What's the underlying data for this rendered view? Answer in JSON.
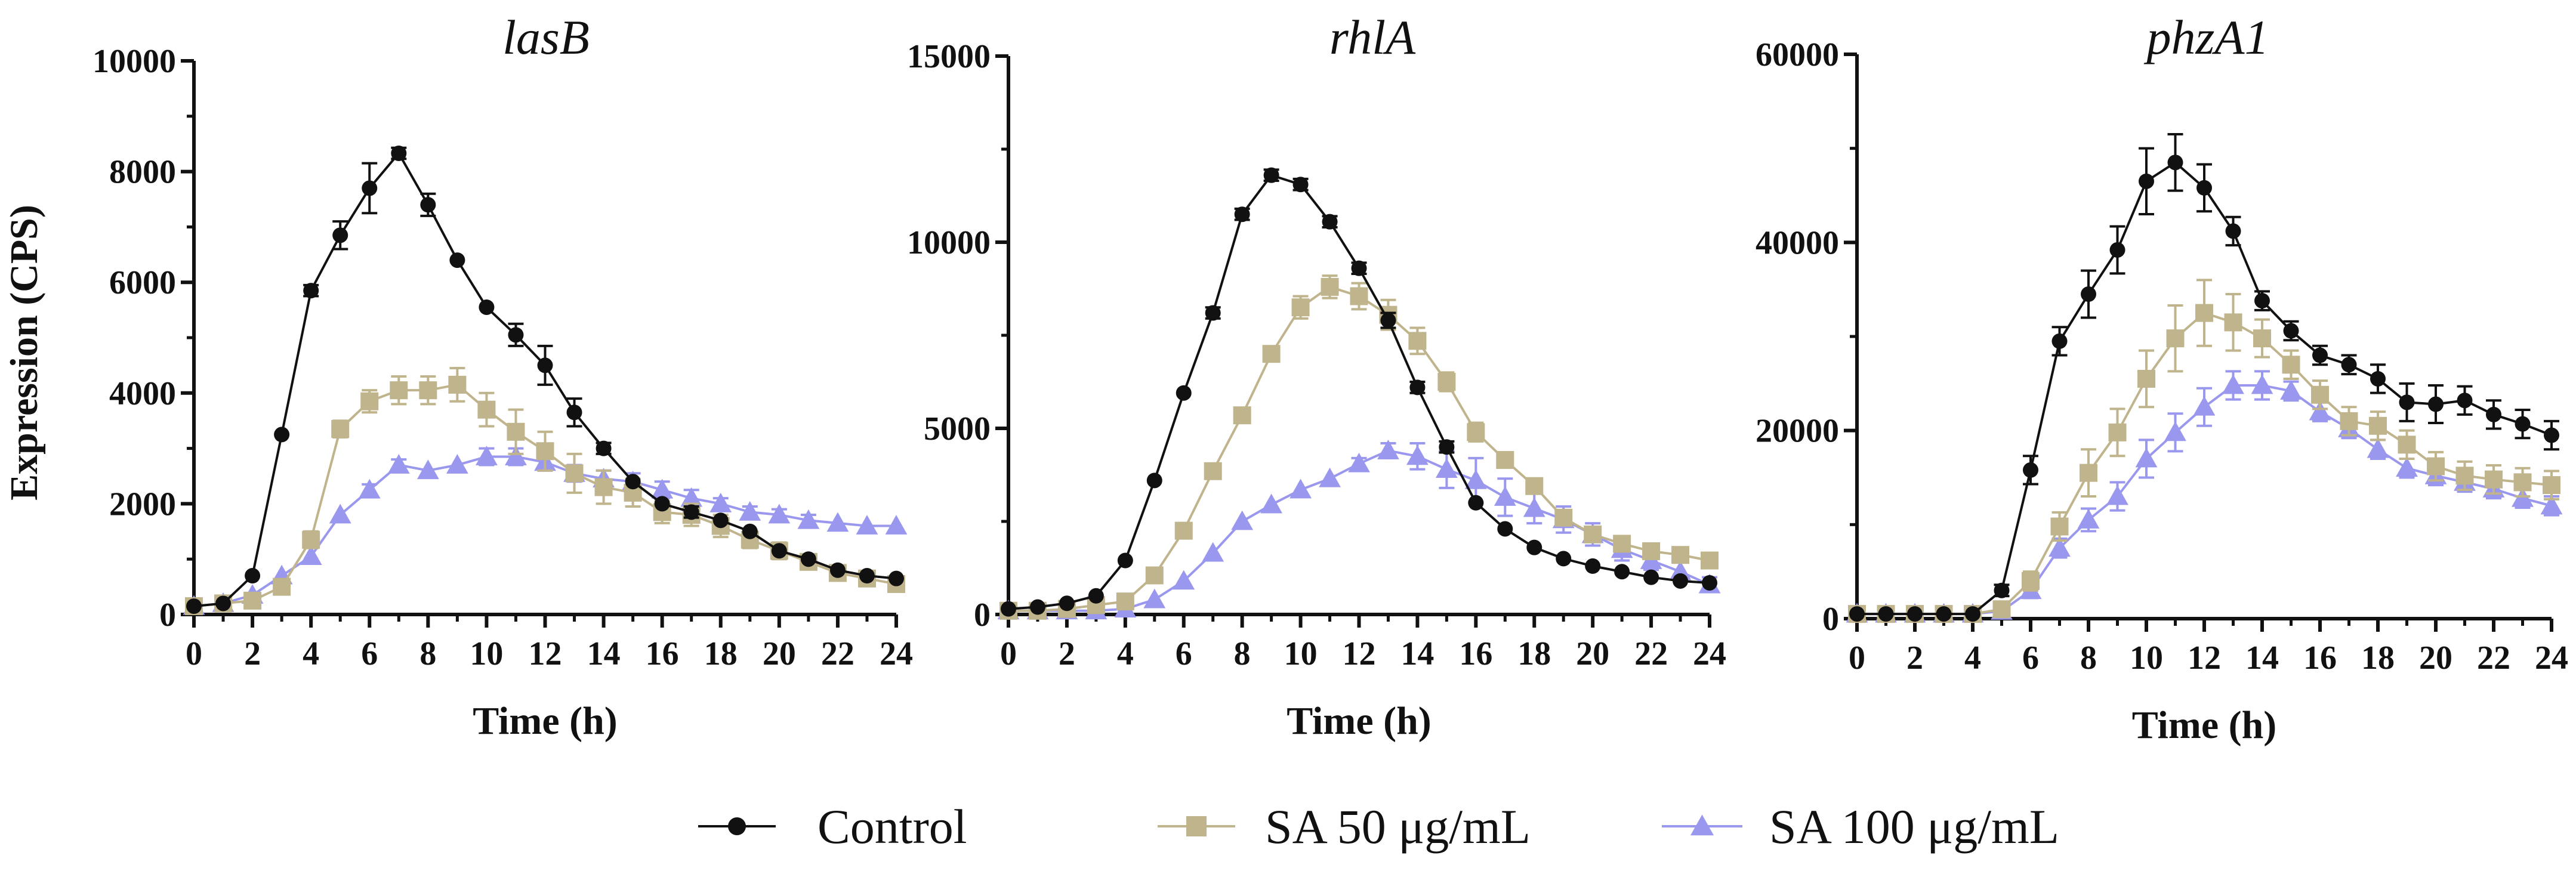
{
  "chart_data": [
    {
      "type": "line",
      "title": "lasB",
      "xlabel": "Time (h)",
      "ylabel": "Expression (CPS)",
      "xlim": [
        0,
        24
      ],
      "ylim": [
        0,
        10000
      ],
      "xticks": [
        0,
        2,
        4,
        6,
        8,
        10,
        12,
        14,
        16,
        18,
        20,
        22,
        24
      ],
      "yticks": [
        0,
        2000,
        4000,
        6000,
        8000,
        10000
      ],
      "ytick_labels": [
        "0",
        "2000",
        "4000",
        "6000",
        "8000",
        "10000"
      ],
      "x": [
        0,
        1,
        2,
        3,
        4,
        5,
        6,
        7,
        8,
        9,
        10,
        11,
        12,
        13,
        14,
        15,
        16,
        17,
        18,
        19,
        20,
        21,
        22,
        23,
        24
      ],
      "series": [
        {
          "name": "Control",
          "values": [
            150,
            200,
            700,
            3250,
            5850,
            6850,
            7700,
            8330,
            7400,
            6400,
            5550,
            5050,
            4500,
            3650,
            3000,
            2400,
            2000,
            1850,
            1700,
            1500,
            1150,
            1000,
            800,
            700,
            650
          ],
          "errors": [
            50,
            50,
            80,
            80,
            100,
            250,
            450,
            100,
            200,
            80,
            80,
            200,
            350,
            250,
            100,
            80,
            80,
            100,
            80,
            80,
            80,
            80,
            80,
            60,
            60
          ]
        },
        {
          "name": "SA 50 μg/mL",
          "values": [
            150,
            200,
            250,
            500,
            1350,
            3350,
            3850,
            4050,
            4050,
            4150,
            3700,
            3300,
            2950,
            2550,
            2300,
            2200,
            1850,
            1800,
            1600,
            1350,
            1150,
            950,
            750,
            650,
            550
          ],
          "errors": [
            50,
            50,
            50,
            80,
            150,
            150,
            200,
            250,
            250,
            300,
            300,
            400,
            350,
            350,
            300,
            250,
            200,
            200,
            200,
            150,
            150,
            120,
            100,
            80,
            80
          ]
        },
        {
          "name": "SA 100 μg/mL",
          "values": [
            150,
            200,
            350,
            700,
            1050,
            1800,
            2250,
            2700,
            2600,
            2700,
            2850,
            2850,
            2750,
            2550,
            2450,
            2400,
            2250,
            2100,
            2000,
            1850,
            1800,
            1700,
            1650,
            1600,
            1600
          ],
          "errors": [
            40,
            40,
            50,
            60,
            80,
            80,
            100,
            100,
            80,
            80,
            150,
            150,
            150,
            150,
            150,
            150,
            150,
            150,
            100,
            100,
            100,
            100,
            80,
            80,
            80
          ]
        }
      ]
    },
    {
      "type": "line",
      "title": "rhlA",
      "xlabel": "Time (h)",
      "ylabel": "",
      "xlim": [
        0,
        24
      ],
      "ylim": [
        0,
        15000
      ],
      "xticks": [
        0,
        2,
        4,
        6,
        8,
        10,
        12,
        14,
        16,
        18,
        20,
        22,
        24
      ],
      "yticks": [
        0,
        5000,
        10000,
        15000
      ],
      "ytick_labels": [
        "0",
        "5000",
        "10000",
        "15000"
      ],
      "x": [
        0,
        1,
        2,
        3,
        4,
        5,
        6,
        7,
        8,
        9,
        10,
        11,
        12,
        13,
        14,
        15,
        16,
        17,
        18,
        19,
        20,
        21,
        22,
        23,
        24
      ],
      "series": [
        {
          "name": "Control",
          "values": [
            150,
            200,
            300,
            500,
            1450,
            3600,
            5950,
            8100,
            10750,
            11800,
            11550,
            10550,
            9300,
            7900,
            6100,
            4500,
            3000,
            2300,
            1800,
            1500,
            1300,
            1150,
            1000,
            900,
            850
          ],
          "errors": [
            50,
            50,
            50,
            80,
            80,
            100,
            100,
            150,
            150,
            150,
            150,
            150,
            150,
            200,
            150,
            150,
            100,
            100,
            80,
            80,
            80,
            80,
            80,
            80,
            80
          ]
        },
        {
          "name": "SA 50 μg/mL",
          "values": [
            100,
            100,
            150,
            250,
            350,
            1050,
            2250,
            3850,
            5350,
            7000,
            8250,
            8800,
            8550,
            8050,
            7350,
            6250,
            4900,
            4150,
            3450,
            2600,
            2150,
            1900,
            1700,
            1600,
            1450
          ],
          "errors": [
            50,
            50,
            50,
            50,
            80,
            100,
            150,
            150,
            200,
            200,
            300,
            300,
            350,
            400,
            350,
            250,
            250,
            200,
            200,
            200,
            200,
            200,
            200,
            200,
            200
          ]
        },
        {
          "name": "SA 100 μg/mL",
          "values": [
            100,
            100,
            100,
            100,
            150,
            400,
            900,
            1650,
            2500,
            2950,
            3350,
            3650,
            4050,
            4400,
            4250,
            3900,
            3600,
            3150,
            2850,
            2550,
            2150,
            1750,
            1450,
            1150,
            800
          ],
          "errors": [
            50,
            50,
            50,
            50,
            50,
            80,
            80,
            100,
            100,
            100,
            100,
            100,
            150,
            200,
            350,
            500,
            600,
            500,
            400,
            350,
            300,
            300,
            250,
            250,
            200
          ]
        }
      ]
    },
    {
      "type": "line",
      "title": "phzA1",
      "xlabel": "Time (h)",
      "ylabel": "",
      "xlim": [
        0,
        24
      ],
      "ylim": [
        0,
        60000
      ],
      "xticks": [
        0,
        2,
        4,
        6,
        8,
        10,
        12,
        14,
        16,
        18,
        20,
        22,
        24
      ],
      "yticks": [
        0,
        20000,
        40000,
        60000
      ],
      "ytick_labels": [
        "0",
        "20000",
        "40000",
        "60000"
      ],
      "x": [
        0,
        1,
        2,
        3,
        4,
        5,
        6,
        7,
        8,
        9,
        10,
        11,
        12,
        13,
        14,
        15,
        16,
        17,
        18,
        19,
        20,
        21,
        22,
        23,
        24
      ],
      "series": [
        {
          "name": "Control",
          "values": [
            500,
            500,
            500,
            500,
            500,
            3000,
            15800,
            29500,
            34500,
            39200,
            46500,
            48500,
            45800,
            41200,
            33800,
            30600,
            28000,
            27000,
            25500,
            23000,
            22800,
            23200,
            21700,
            20700,
            19500
          ],
          "errors": [
            300,
            300,
            300,
            300,
            300,
            600,
            1500,
            1500,
            2500,
            2500,
            3500,
            3000,
            2500,
            1500,
            1000,
            1000,
            1000,
            1000,
            1500,
            2000,
            2000,
            1500,
            1500,
            1500,
            1500
          ]
        },
        {
          "name": "SA 50 μg/mL",
          "values": [
            500,
            500,
            500,
            500,
            500,
            1000,
            4000,
            9800,
            15500,
            19800,
            25500,
            29800,
            32500,
            31500,
            29800,
            27000,
            23800,
            21000,
            20500,
            18500,
            16200,
            15200,
            14800,
            14500,
            14200
          ],
          "errors": [
            300,
            300,
            300,
            300,
            300,
            500,
            1000,
            1500,
            2500,
            2500,
            3000,
            3500,
            3500,
            3000,
            2000,
            1500,
            1500,
            1500,
            1500,
            1500,
            1500,
            1500,
            1500,
            1500,
            1500
          ]
        },
        {
          "name": "SA 100 μg/mL",
          "values": [
            500,
            500,
            500,
            500,
            500,
            800,
            3000,
            7500,
            10500,
            13000,
            17000,
            19800,
            22500,
            24800,
            24800,
            24200,
            22000,
            20200,
            18000,
            16000,
            15200,
            14500,
            13800,
            12800,
            12000
          ],
          "errors": [
            300,
            300,
            300,
            300,
            300,
            300,
            800,
            1000,
            1200,
            1500,
            2000,
            2000,
            2000,
            1500,
            1500,
            1000,
            1000,
            1000,
            1000,
            1000,
            1000,
            1000,
            1000,
            1000,
            1000
          ]
        }
      ]
    }
  ],
  "legend": {
    "position": "bottom",
    "items": [
      {
        "label": "Control",
        "marker": "circle",
        "color": "#111111"
      },
      {
        "label": "SA 50 μg/mL",
        "marker": "square",
        "color": "#bfb48c"
      },
      {
        "label": "SA 100 μg/mL",
        "marker": "triangle",
        "color": "#9a97ee"
      }
    ]
  }
}
